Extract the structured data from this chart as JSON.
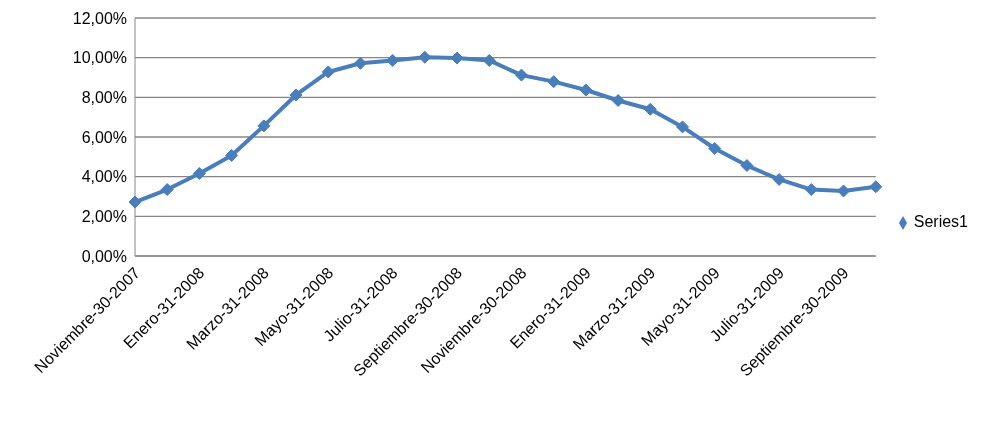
{
  "chart_data": {
    "type": "line",
    "categories": [
      "Noviembre-30-2007",
      null,
      "Enero-31-2008",
      null,
      "Marzo-31-2008",
      null,
      "Mayo-31-2008",
      null,
      "Julio-31-2008",
      null,
      "Septiembre-30-2008",
      null,
      "Noviembre-30-2008",
      null,
      "Enero-31-2009",
      null,
      "Marzo-31-2009",
      null,
      "Mayo-31-2009",
      null,
      "Julio-31-2009",
      null,
      "Septiembre-30-2009",
      null
    ],
    "series": [
      {
        "name": "Series1",
        "color": "#4a7ebb",
        "values": [
          2.72,
          3.35,
          4.16,
          5.07,
          6.56,
          8.12,
          9.28,
          9.72,
          9.86,
          10.02,
          9.98,
          9.86,
          9.12,
          8.79,
          8.37,
          7.84,
          7.4,
          6.51,
          5.42,
          4.56,
          3.86,
          3.35,
          3.28,
          3.49
        ]
      }
    ],
    "ylim": [
      0,
      12
    ],
    "yticks": [
      {
        "value": 0,
        "label": "0,00%"
      },
      {
        "value": 2,
        "label": "2,00%"
      },
      {
        "value": 4,
        "label": "4,00%"
      },
      {
        "value": 6,
        "label": "6,00%"
      },
      {
        "value": 8,
        "label": "8,00%"
      },
      {
        "value": 10,
        "label": "10,00%"
      },
      {
        "value": 12,
        "label": "12,00%"
      }
    ],
    "grid": "y",
    "legend": "right",
    "marker": "diamond"
  }
}
